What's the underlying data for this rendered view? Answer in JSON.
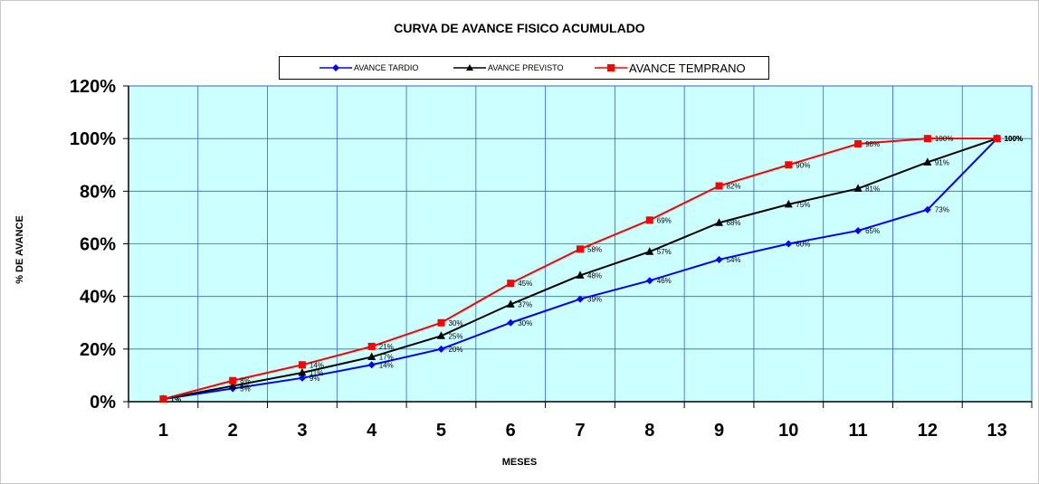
{
  "chart_data": {
    "type": "line",
    "title": "CURVA DE AVANCE FISICO ACUMULADO",
    "xlabel": "MESES",
    "ylabel": "% DE AVANCE",
    "categories": [
      "1",
      "2",
      "3",
      "4",
      "5",
      "6",
      "7",
      "8",
      "9",
      "10",
      "11",
      "12",
      "13"
    ],
    "ylim": [
      0,
      120
    ],
    "yticks": [
      "0%",
      "20%",
      "40%",
      "60%",
      "80%",
      "100%",
      "120%"
    ],
    "grid": true,
    "legend_position": "top",
    "plot_background": "#ccffff",
    "grid_color": "#3366cc",
    "series": [
      {
        "name": "AVANCE TARDIO",
        "color": "#0000ff",
        "marker": "diamond",
        "values": [
          1,
          5,
          9,
          14,
          20,
          30,
          39,
          46,
          54,
          60,
          65,
          73,
          100
        ],
        "labels": [
          "1%",
          "5%",
          "9%",
          "14%",
          "20%",
          "30%",
          "39%",
          "46%",
          "54%",
          "60%",
          "65%",
          "73%",
          "100%"
        ]
      },
      {
        "name": "AVANCE PREVISTO",
        "color": "#000000",
        "marker": "triangle",
        "values": [
          1,
          6,
          11,
          17,
          25,
          37,
          48,
          57,
          68,
          75,
          81,
          91,
          100
        ],
        "labels": [
          "1%",
          "6%",
          "11%",
          "17%",
          "25%",
          "37%",
          "48%",
          "57%",
          "68%",
          "75%",
          "81%",
          "91%",
          "100%"
        ]
      },
      {
        "name": "AVANCE TEMPRANO",
        "color": "#ff0000",
        "marker": "square",
        "values": [
          1,
          8,
          14,
          21,
          30,
          45,
          58,
          69,
          82,
          90,
          98,
          100,
          100
        ],
        "labels": [
          "1%",
          "8%",
          "14%",
          "21%",
          "30%",
          "45%",
          "58%",
          "69%",
          "82%",
          "90%",
          "98%",
          "100%",
          "100%"
        ]
      }
    ]
  }
}
